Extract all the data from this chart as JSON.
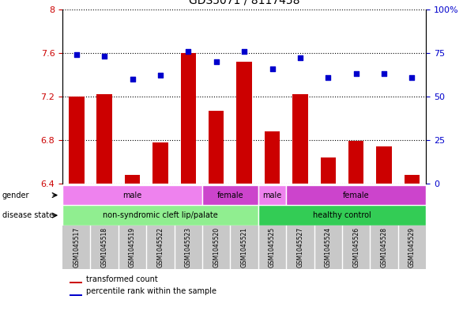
{
  "title": "GDS5071 / 8117458",
  "samples": [
    "GSM1045517",
    "GSM1045518",
    "GSM1045519",
    "GSM1045522",
    "GSM1045523",
    "GSM1045520",
    "GSM1045521",
    "GSM1045525",
    "GSM1045527",
    "GSM1045524",
    "GSM1045526",
    "GSM1045528",
    "GSM1045529"
  ],
  "bar_values": [
    7.2,
    7.22,
    6.48,
    6.78,
    7.6,
    7.07,
    7.52,
    6.88,
    7.22,
    6.64,
    6.79,
    6.74,
    6.48
  ],
  "dot_values": [
    74,
    73,
    60,
    62,
    76,
    70,
    76,
    66,
    72,
    61,
    63,
    63,
    61
  ],
  "ylim_left": [
    6.4,
    8.0
  ],
  "ylim_right": [
    0,
    100
  ],
  "yticks_left": [
    6.4,
    6.8,
    7.2,
    7.6,
    8.0
  ],
  "ytick_labels_left": [
    "6.4",
    "6.8",
    "7.2",
    "7.6",
    "8"
  ],
  "yticks_right": [
    0,
    25,
    50,
    75,
    100
  ],
  "ytick_labels_right": [
    "0",
    "25",
    "50",
    "75",
    "100%"
  ],
  "bar_color": "#cc0000",
  "dot_color": "#0000cc",
  "bar_bottom": 6.4,
  "disease_state_groups": [
    {
      "label": "non-syndromic cleft lip/palate",
      "start": 0,
      "end": 7,
      "color": "#90ee90"
    },
    {
      "label": "healthy control",
      "start": 7,
      "end": 13,
      "color": "#33cc55"
    }
  ],
  "gender_groups": [
    {
      "label": "male",
      "start": 0,
      "end": 5,
      "color": "#ee82ee"
    },
    {
      "label": "female",
      "start": 5,
      "end": 7,
      "color": "#cc44cc"
    },
    {
      "label": "male",
      "start": 7,
      "end": 8,
      "color": "#ee82ee"
    },
    {
      "label": "female",
      "start": 8,
      "end": 13,
      "color": "#cc44cc"
    }
  ],
  "side_label_ds": "disease state",
  "side_label_gd": "gender",
  "bg_color": "#ffffff",
  "label_bg_color": "#c8c8c8",
  "legend_items": [
    "transformed count",
    "percentile rank within the sample"
  ]
}
